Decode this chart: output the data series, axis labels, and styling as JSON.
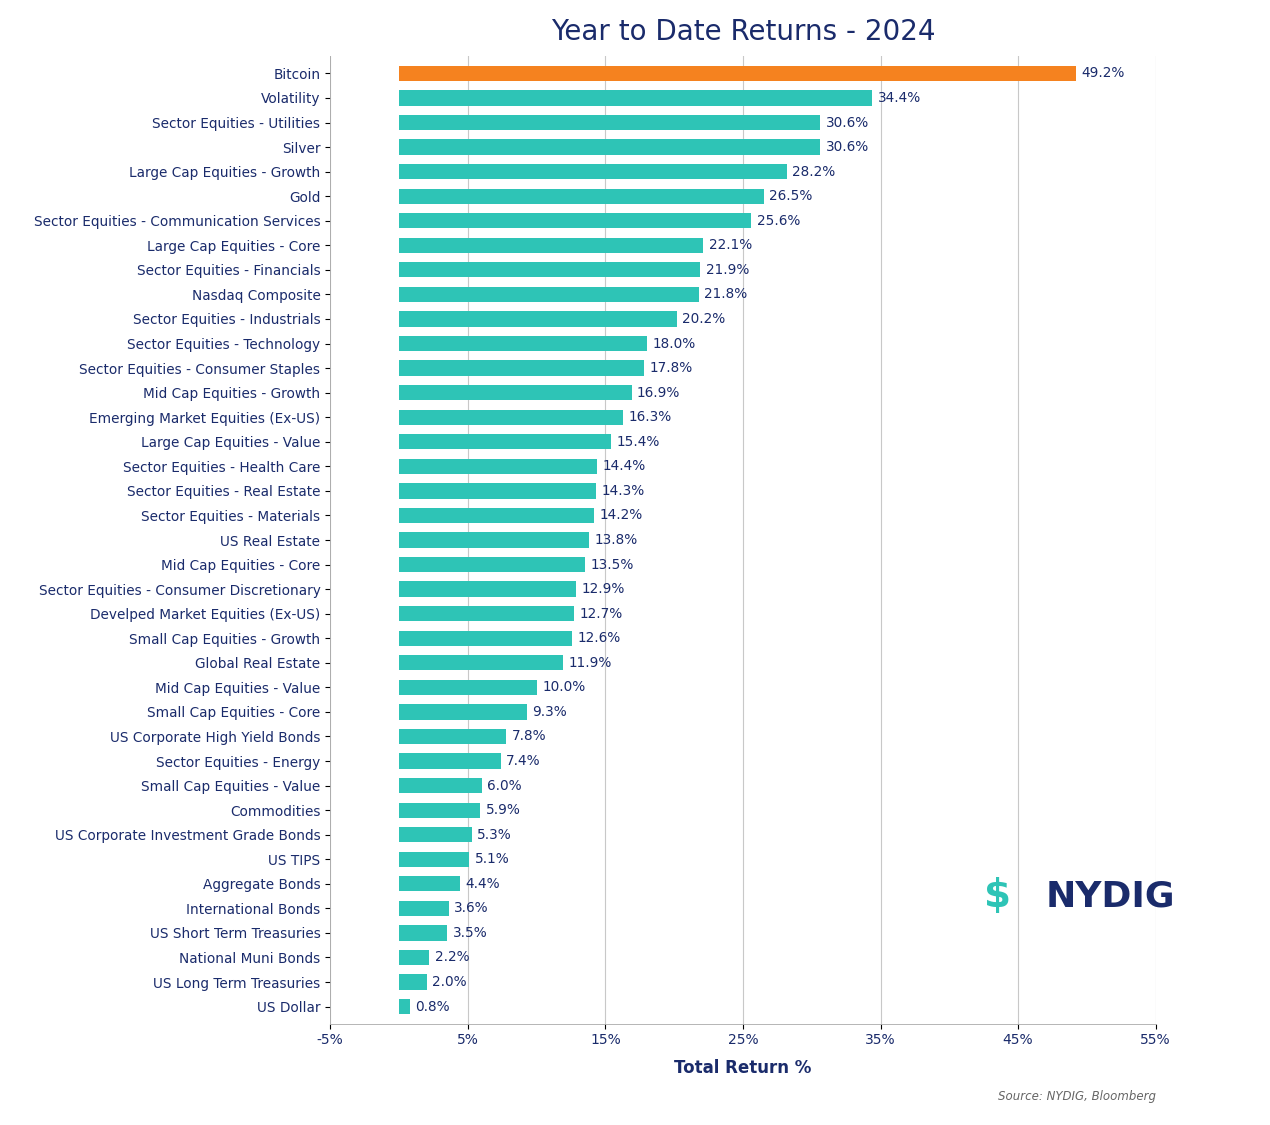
{
  "title": "Year to Date Returns - 2024",
  "xlabel": "Total Return %",
  "source": "Source: NYDIG, Bloomberg",
  "categories": [
    "Bitcoin",
    "Volatility",
    "Sector Equities - Utilities",
    "Silver",
    "Large Cap Equities - Growth",
    "Gold",
    "Sector Equities - Communication Services",
    "Large Cap Equities - Core",
    "Sector Equities - Financials",
    "Nasdaq Composite",
    "Sector Equities - Industrials",
    "Sector Equities - Technology",
    "Sector Equities - Consumer Staples",
    "Mid Cap Equities - Growth",
    "Emerging Market Equities (Ex-US)",
    "Large Cap Equities - Value",
    "Sector Equities - Health Care",
    "Sector Equities - Real Estate",
    "Sector Equities - Materials",
    "US Real Estate",
    "Mid Cap Equities - Core",
    "Sector Equities - Consumer Discretionary",
    "Develped Market Equities (Ex-US)",
    "Small Cap Equities - Growth",
    "Global Real Estate",
    "Mid Cap Equities - Value",
    "Small Cap Equities - Core",
    "US Corporate High Yield Bonds",
    "Sector Equities - Energy",
    "Small Cap Equities - Value",
    "Commodities",
    "US Corporate Investment Grade Bonds",
    "US TIPS",
    "Aggregate Bonds",
    "International Bonds",
    "US Short Term Treasuries",
    "National Muni Bonds",
    "US Long Term Treasuries",
    "US Dollar"
  ],
  "values": [
    49.2,
    34.4,
    30.6,
    30.6,
    28.2,
    26.5,
    25.6,
    22.1,
    21.9,
    21.8,
    20.2,
    18.0,
    17.8,
    16.9,
    16.3,
    15.4,
    14.4,
    14.3,
    14.2,
    13.8,
    13.5,
    12.9,
    12.7,
    12.6,
    11.9,
    10.0,
    9.3,
    7.8,
    7.4,
    6.0,
    5.9,
    5.3,
    5.1,
    4.4,
    3.6,
    3.5,
    2.2,
    2.0,
    0.8
  ],
  "bar_colors": [
    "#F5821F",
    "#2EC4B6",
    "#2EC4B6",
    "#2EC4B6",
    "#2EC4B6",
    "#2EC4B6",
    "#2EC4B6",
    "#2EC4B6",
    "#2EC4B6",
    "#2EC4B6",
    "#2EC4B6",
    "#2EC4B6",
    "#2EC4B6",
    "#2EC4B6",
    "#2EC4B6",
    "#2EC4B6",
    "#2EC4B6",
    "#2EC4B6",
    "#2EC4B6",
    "#2EC4B6",
    "#2EC4B6",
    "#2EC4B6",
    "#2EC4B6",
    "#2EC4B6",
    "#2EC4B6",
    "#2EC4B6",
    "#2EC4B6",
    "#2EC4B6",
    "#2EC4B6",
    "#2EC4B6",
    "#2EC4B6",
    "#2EC4B6",
    "#2EC4B6",
    "#2EC4B6",
    "#2EC4B6",
    "#2EC4B6",
    "#2EC4B6",
    "#2EC4B6",
    "#2EC4B6"
  ],
  "xlim": [
    -5,
    55
  ],
  "xticks": [
    -5,
    5,
    15,
    25,
    35,
    45,
    55
  ],
  "xtick_labels": [
    "-5%",
    "5%",
    "15%",
    "25%",
    "35%",
    "45%",
    "55%"
  ],
  "title_color": "#1a2b6b",
  "label_color": "#1a2b6b",
  "value_color": "#1a2b6b",
  "background_color": "#ffffff",
  "grid_color": "#c8c8c8",
  "bar_height": 0.62,
  "title_fontsize": 20,
  "label_fontsize": 9.8,
  "value_fontsize": 9.8,
  "xlabel_fontsize": 12,
  "nydig_color": "#1a2b6b",
  "nydig_icon_color": "#2EC4B6"
}
